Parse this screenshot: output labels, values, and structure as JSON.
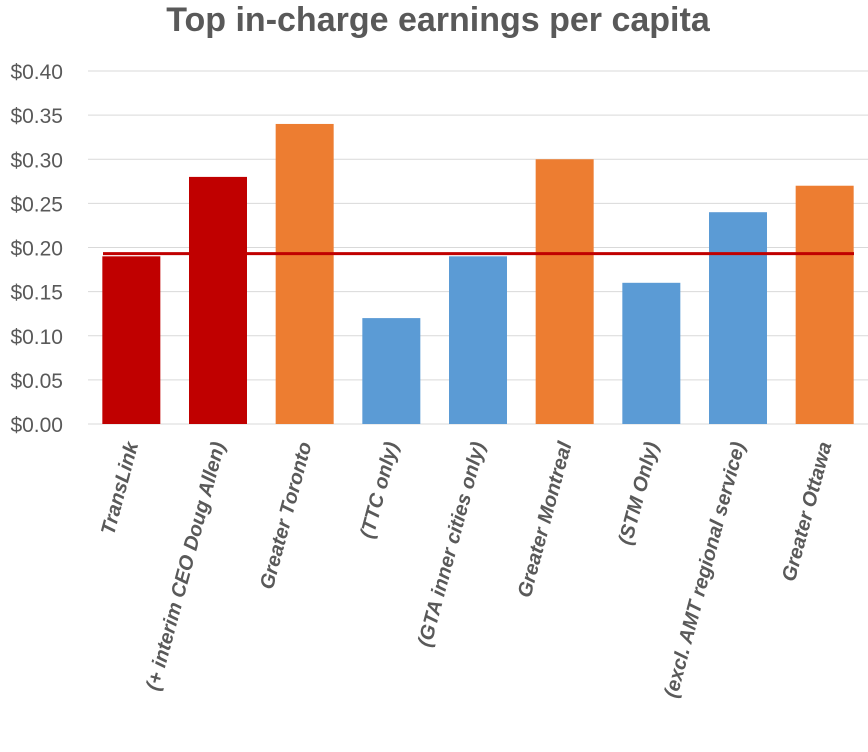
{
  "chart_data": {
    "type": "bar",
    "title": "Top in-charge earnings per capita",
    "xlabel": "",
    "ylabel": "",
    "ylim": [
      0,
      0.4
    ],
    "yticks": [
      0.0,
      0.05,
      0.1,
      0.15,
      0.2,
      0.25,
      0.3,
      0.35,
      0.4
    ],
    "ytick_labels": [
      "$0.00",
      "$0.05",
      "$0.10",
      "$0.15",
      "$0.20",
      "$0.25",
      "$0.30",
      "$0.35",
      "$0.40"
    ],
    "categories": [
      "TransLink",
      "(+ interim CEO Doug Allen)",
      "Greater Toronto",
      "(TTC only)",
      "(GTA inner cities only)",
      "Greater Montreal",
      "(STM Only)",
      "(excl. AMT regional service)",
      "Greater Ottawa"
    ],
    "values": [
      0.19,
      0.28,
      0.34,
      0.12,
      0.19,
      0.3,
      0.16,
      0.24,
      0.27
    ],
    "bar_colors": [
      "#c00000",
      "#c00000",
      "#ed7d31",
      "#5b9bd5",
      "#5b9bd5",
      "#ed7d31",
      "#5b9bd5",
      "#5b9bd5",
      "#ed7d31"
    ],
    "reference_line": {
      "value": 0.193,
      "color": "#c00000"
    },
    "grid": true,
    "legend": "none"
  }
}
